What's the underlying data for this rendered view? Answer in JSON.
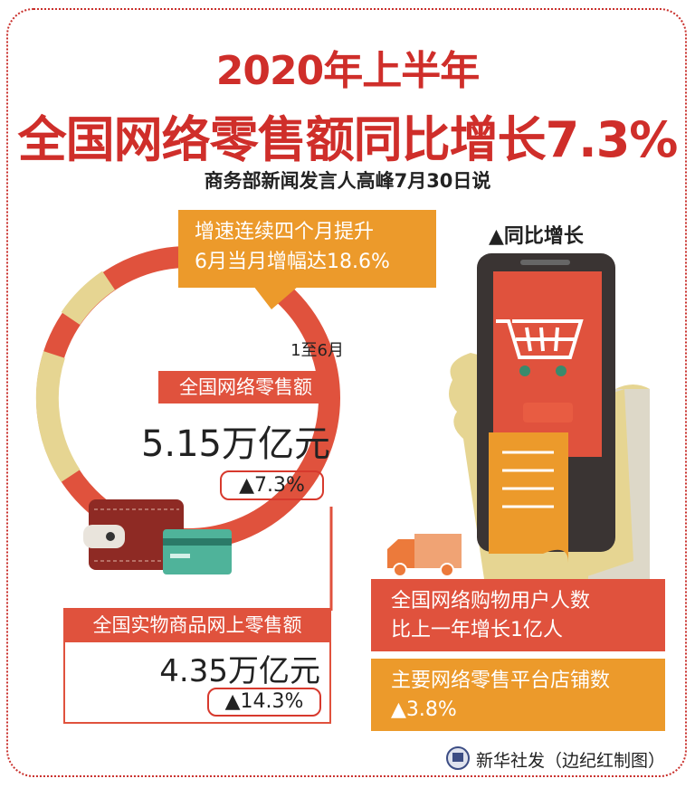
{
  "title_line1": "2020年上半年",
  "title_line2": "全国网络零售额同比增长7.3%",
  "subtitle": "商务部新闻发言人高峰7月30日说",
  "callout": {
    "line1": "增速连续四个月提升",
    "line2": "6月当月增幅达18.6%"
  },
  "yoy_legend": "▲同比增长",
  "online_retail": {
    "period": "1至6月",
    "label": "全国网络零售额",
    "value": "5.15万亿元",
    "growth": "▲7.3%"
  },
  "physical_goods": {
    "label": "全国实物商品网上零售额",
    "value": "4.35万亿元",
    "growth": "▲14.3%"
  },
  "users": {
    "line1": "全国网络购物用户人数",
    "line2": "比上一年增长1亿人"
  },
  "stores": {
    "line1": "主要网络零售平台店铺数",
    "line2": "▲3.8%"
  },
  "credit": "新华社发（边纪红制图）",
  "colors": {
    "red": "#e0523d",
    "title_red": "#cf2e2a",
    "orange": "#ec9a2b",
    "beige": "#e6d592",
    "dark": "#3a3433"
  }
}
